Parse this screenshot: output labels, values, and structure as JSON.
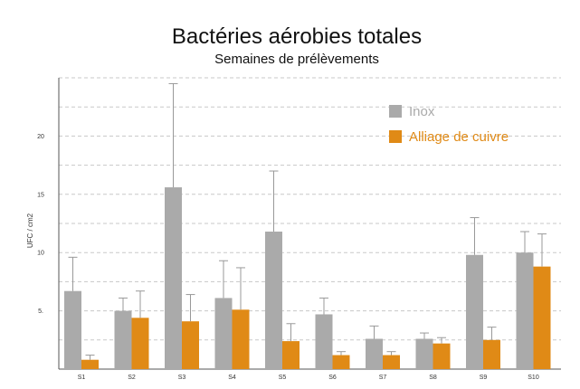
{
  "chart_data": {
    "type": "bar",
    "title": "Bactéries aérobies totales",
    "subtitle": "Semaines de prélèvements",
    "xlabel": "",
    "ylabel": "UFC / cm2",
    "categories": [
      "S1",
      "S2",
      "S3",
      "S4",
      "S5",
      "S6",
      "S7",
      "S8",
      "S9",
      "S10"
    ],
    "ylim": [
      0,
      25
    ],
    "yticks": [
      5,
      10,
      15,
      20
    ],
    "ytick_labels": [
      "5.",
      "10",
      "15",
      "20"
    ],
    "grid": true,
    "legend_position": "top-right",
    "series": [
      {
        "name": "Inox",
        "color": "#aaaaaa",
        "values": [
          6.7,
          5.0,
          15.6,
          6.1,
          11.8,
          4.7,
          2.6,
          2.6,
          9.8,
          10.0
        ],
        "error_upper": [
          9.6,
          6.1,
          24.5,
          9.3,
          17.0,
          6.1,
          3.7,
          3.1,
          13.0,
          11.8
        ]
      },
      {
        "name": "Alliage de cuivre",
        "color": "#e08a16",
        "values": [
          0.8,
          4.4,
          4.1,
          5.1,
          2.4,
          1.2,
          1.2,
          2.2,
          2.5,
          8.8
        ],
        "error_upper": [
          1.2,
          6.7,
          6.4,
          8.7,
          3.9,
          1.5,
          1.5,
          2.7,
          3.6,
          11.6
        ]
      }
    ]
  }
}
